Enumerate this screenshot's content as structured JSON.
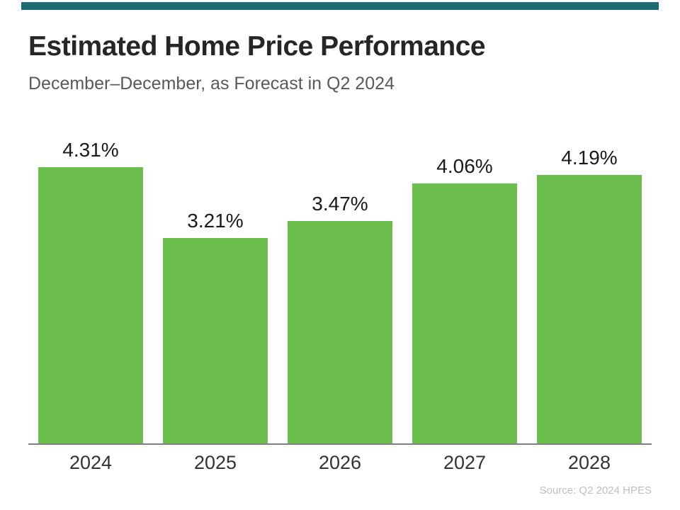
{
  "page": {
    "title": "Estimated Home Price Performance",
    "subtitle": "December–December, as Forecast in Q2 2024",
    "source": "Source: Q2 2024 HPES"
  },
  "colors": {
    "top_strip": "#1d6a73",
    "bar_fill": "#6cbe4c",
    "title_text": "#262626",
    "subtitle_text": "#595959",
    "axis_line": "#808080",
    "x_label_text": "#333333",
    "value_label_text": "#1a1a1a",
    "source_text": "#bfbfbf"
  },
  "chart_data": {
    "type": "bar",
    "title": "Estimated Home Price Performance",
    "subtitle": "December–December, as Forecast in Q2 2024",
    "categories": [
      "2024",
      "2025",
      "2026",
      "2027",
      "2028"
    ],
    "values": [
      4.31,
      3.21,
      3.47,
      4.06,
      4.19
    ],
    "value_labels": [
      "4.31%",
      "3.21%",
      "3.47%",
      "4.06%",
      "4.19%"
    ],
    "xlabel": "",
    "ylabel": "",
    "ylim": [
      0,
      4.8
    ],
    "grid": false,
    "legend": false,
    "bar_color": "#6cbe4c",
    "source": "Source: Q2 2024 HPES"
  }
}
